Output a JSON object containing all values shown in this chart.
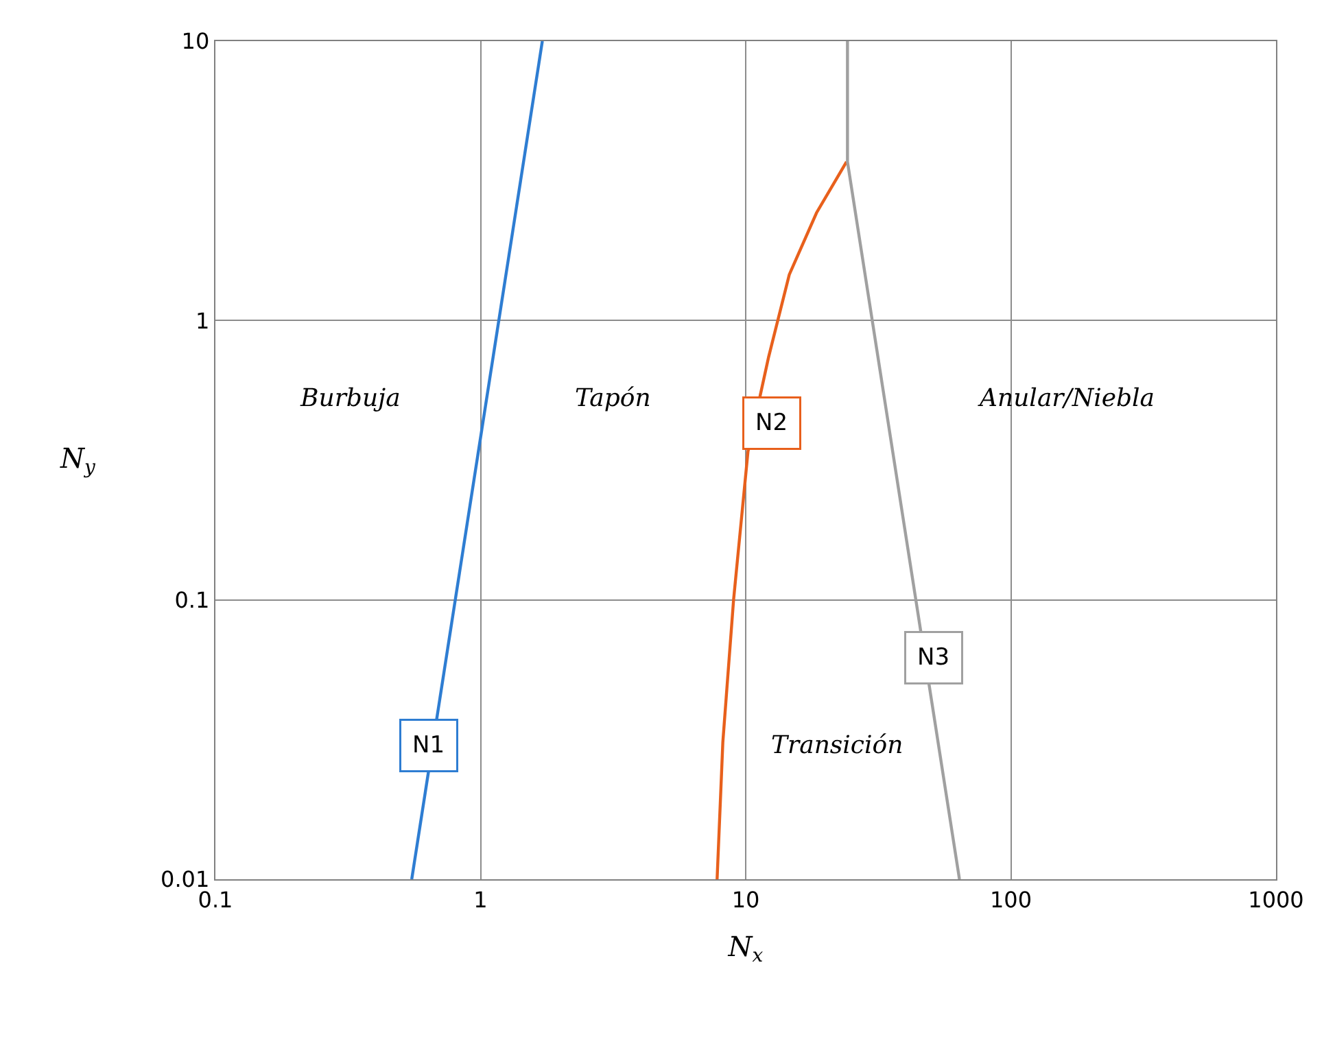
{
  "chart_data": {
    "type": "line",
    "xlabel": "N$_{x}$",
    "ylabel": "N$_{y}$",
    "log": "xy",
    "grid": true,
    "marker": "none",
    "line_style": "solid",
    "xlim": [
      0.1,
      1000
    ],
    "ylim": [
      0.01,
      10
    ],
    "xticks": [
      0.1,
      1,
      10,
      100,
      1000
    ],
    "yticks": [
      0.01,
      0.1,
      1,
      10
    ],
    "series": [
      {
        "color": "#2e7dd2",
        "x": [
          0.55,
          1.71
        ],
        "values": [
          0.01,
          10
        ]
      },
      {
        "color": "#e8601c",
        "x": [
          7.8,
          8.2,
          9.0,
          10.2,
          12.2,
          14.6,
          18.5,
          24.0
        ],
        "values": [
          0.01,
          0.031,
          0.1,
          0.34,
          0.74,
          1.46,
          2.43,
          3.7
        ]
      },
      {
        "color": "#a0a0a0",
        "x": [
          24.2,
          24.2,
          64
        ],
        "values": [
          10,
          3.7,
          0.01
        ]
      }
    ],
    "annotations": [
      {
        "text": "N1",
        "x": 0.64,
        "y": 0.03
      },
      {
        "text": "N2",
        "x": 12.6,
        "y": 0.43
      },
      {
        "text": "N3",
        "x": 51,
        "y": 0.062
      },
      "Burbuja",
      "Tapón",
      "Anular/Niebla",
      "Transición"
    ]
  }
}
